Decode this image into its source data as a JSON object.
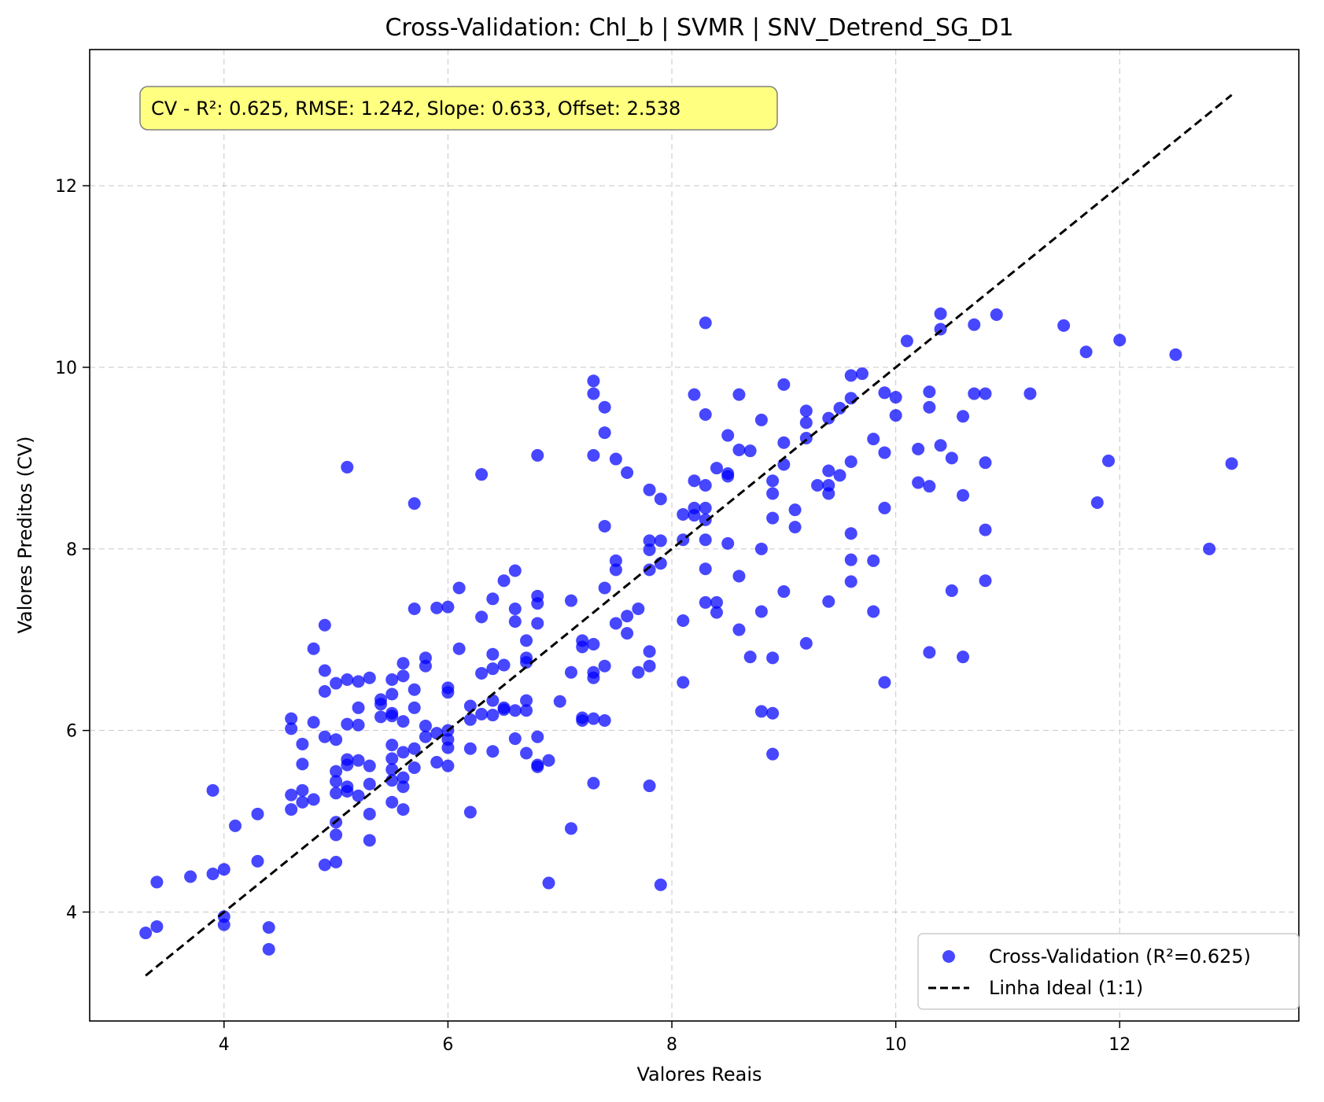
{
  "colors": {
    "points": "#0000ff",
    "ideal_line": "#000000",
    "stats_box_fill": "#ffff80",
    "stats_box_edge": "#808080"
  },
  "chart_data": {
    "type": "scatter",
    "title": "Cross-Validation: Chl_b | SVMR | SNV_Detrend_SG_D1",
    "xlabel": "Valores Reais",
    "ylabel": "Valores Preditos (CV)",
    "xlim": [
      2.8,
      13.6
    ],
    "ylim": [
      2.8,
      13.5
    ],
    "xticks": [
      4,
      6,
      8,
      10,
      12
    ],
    "yticks": [
      4,
      6,
      8,
      10,
      12
    ],
    "grid": true,
    "legend_position": "lower-right",
    "stats_text": "CV - R²: 0.625, RMSE: 1.242, Slope: 0.633, Offset: 2.538",
    "series": [
      {
        "name": "Cross-Validation (R²=0.625)",
        "kind": "scatter",
        "points": [
          [
            3.3,
            3.77
          ],
          [
            3.4,
            3.84
          ],
          [
            3.4,
            4.33
          ],
          [
            3.7,
            4.39
          ],
          [
            3.9,
            4.42
          ],
          [
            3.9,
            5.34
          ],
          [
            4.0,
            3.95
          ],
          [
            4.0,
            3.86
          ],
          [
            4.0,
            4.47
          ],
          [
            4.1,
            4.95
          ],
          [
            4.3,
            4.56
          ],
          [
            4.3,
            5.08
          ],
          [
            4.4,
            3.83
          ],
          [
            4.4,
            3.59
          ],
          [
            4.6,
            5.13
          ],
          [
            4.6,
            5.29
          ],
          [
            4.6,
            6.02
          ],
          [
            4.6,
            6.13
          ],
          [
            4.7,
            5.21
          ],
          [
            4.7,
            5.34
          ],
          [
            4.7,
            5.63
          ],
          [
            4.7,
            5.85
          ],
          [
            4.8,
            5.24
          ],
          [
            4.8,
            6.09
          ],
          [
            4.8,
            6.9
          ],
          [
            4.9,
            4.52
          ],
          [
            4.9,
            5.93
          ],
          [
            4.9,
            6.43
          ],
          [
            4.9,
            6.66
          ],
          [
            4.9,
            7.16
          ],
          [
            5.0,
            4.55
          ],
          [
            5.0,
            4.85
          ],
          [
            5.0,
            4.99
          ],
          [
            5.0,
            5.31
          ],
          [
            5.0,
            5.44
          ],
          [
            5.0,
            5.55
          ],
          [
            5.0,
            5.9
          ],
          [
            5.0,
            6.52
          ],
          [
            5.1,
            5.33
          ],
          [
            5.1,
            5.38
          ],
          [
            5.1,
            5.62
          ],
          [
            5.1,
            5.68
          ],
          [
            5.1,
            6.07
          ],
          [
            5.1,
            6.56
          ],
          [
            5.1,
            8.9
          ],
          [
            5.2,
            5.28
          ],
          [
            5.2,
            5.67
          ],
          [
            5.2,
            6.06
          ],
          [
            5.2,
            6.25
          ],
          [
            5.2,
            6.54
          ],
          [
            5.3,
            4.79
          ],
          [
            5.3,
            5.08
          ],
          [
            5.3,
            5.41
          ],
          [
            5.3,
            5.61
          ],
          [
            5.3,
            6.58
          ],
          [
            5.4,
            6.15
          ],
          [
            5.4,
            6.29
          ],
          [
            5.4,
            6.34
          ],
          [
            5.5,
            5.21
          ],
          [
            5.5,
            5.45
          ],
          [
            5.5,
            5.57
          ],
          [
            5.5,
            5.69
          ],
          [
            5.5,
            5.84
          ],
          [
            5.5,
            6.16
          ],
          [
            5.5,
            6.19
          ],
          [
            5.5,
            6.4
          ],
          [
            5.5,
            6.56
          ],
          [
            5.6,
            5.13
          ],
          [
            5.6,
            5.38
          ],
          [
            5.6,
            5.48
          ],
          [
            5.6,
            5.76
          ],
          [
            5.6,
            6.1
          ],
          [
            5.6,
            6.6
          ],
          [
            5.6,
            6.74
          ],
          [
            5.7,
            5.59
          ],
          [
            5.7,
            5.8
          ],
          [
            5.7,
            6.25
          ],
          [
            5.7,
            6.45
          ],
          [
            5.7,
            7.34
          ],
          [
            5.7,
            8.5
          ],
          [
            5.8,
            5.93
          ],
          [
            5.8,
            6.05
          ],
          [
            5.8,
            6.71
          ],
          [
            5.8,
            6.8
          ],
          [
            5.9,
            5.65
          ],
          [
            5.9,
            5.97
          ],
          [
            5.9,
            7.35
          ],
          [
            6.0,
            5.61
          ],
          [
            6.0,
            5.81
          ],
          [
            6.0,
            5.9
          ],
          [
            6.0,
            6.0
          ],
          [
            6.0,
            6.42
          ],
          [
            6.0,
            6.47
          ],
          [
            6.0,
            7.36
          ],
          [
            6.1,
            6.9
          ],
          [
            6.1,
            7.57
          ],
          [
            6.2,
            5.1
          ],
          [
            6.2,
            5.8
          ],
          [
            6.2,
            6.12
          ],
          [
            6.2,
            6.27
          ],
          [
            6.3,
            6.18
          ],
          [
            6.3,
            6.63
          ],
          [
            6.3,
            7.25
          ],
          [
            6.3,
            8.82
          ],
          [
            6.4,
            5.77
          ],
          [
            6.4,
            6.17
          ],
          [
            6.4,
            6.33
          ],
          [
            6.4,
            6.68
          ],
          [
            6.4,
            6.84
          ],
          [
            6.4,
            7.45
          ],
          [
            6.5,
            6.23
          ],
          [
            6.5,
            6.25
          ],
          [
            6.5,
            6.72
          ],
          [
            6.5,
            7.65
          ],
          [
            6.6,
            5.91
          ],
          [
            6.6,
            6.22
          ],
          [
            6.6,
            7.2
          ],
          [
            6.6,
            7.34
          ],
          [
            6.6,
            7.76
          ],
          [
            6.7,
            5.75
          ],
          [
            6.7,
            6.22
          ],
          [
            6.7,
            6.33
          ],
          [
            6.7,
            6.75
          ],
          [
            6.7,
            6.8
          ],
          [
            6.7,
            6.99
          ],
          [
            6.8,
            5.6
          ],
          [
            6.8,
            5.62
          ],
          [
            6.8,
            5.93
          ],
          [
            6.8,
            7.18
          ],
          [
            6.8,
            7.4
          ],
          [
            6.8,
            7.48
          ],
          [
            6.8,
            9.03
          ],
          [
            6.9,
            4.32
          ],
          [
            6.9,
            5.67
          ],
          [
            7.0,
            6.32
          ],
          [
            7.1,
            4.92
          ],
          [
            7.1,
            6.64
          ],
          [
            7.1,
            7.43
          ],
          [
            7.2,
            6.11
          ],
          [
            7.2,
            6.14
          ],
          [
            7.2,
            6.92
          ],
          [
            7.2,
            6.99
          ],
          [
            7.3,
            5.42
          ],
          [
            7.3,
            6.13
          ],
          [
            7.3,
            6.58
          ],
          [
            7.3,
            6.64
          ],
          [
            7.3,
            6.95
          ],
          [
            7.3,
            9.03
          ],
          [
            7.3,
            9.71
          ],
          [
            7.3,
            9.85
          ],
          [
            7.4,
            6.11
          ],
          [
            7.4,
            6.71
          ],
          [
            7.4,
            7.57
          ],
          [
            7.4,
            8.25
          ],
          [
            7.4,
            9.28
          ],
          [
            7.4,
            9.56
          ],
          [
            7.5,
            7.18
          ],
          [
            7.5,
            7.77
          ],
          [
            7.5,
            7.87
          ],
          [
            7.5,
            8.99
          ],
          [
            7.6,
            7.07
          ],
          [
            7.6,
            7.26
          ],
          [
            7.6,
            8.84
          ],
          [
            7.7,
            6.64
          ],
          [
            7.7,
            7.34
          ],
          [
            7.8,
            5.39
          ],
          [
            7.8,
            6.71
          ],
          [
            7.8,
            6.87
          ],
          [
            7.8,
            7.77
          ],
          [
            7.8,
            7.99
          ],
          [
            7.8,
            8.09
          ],
          [
            7.8,
            8.65
          ],
          [
            7.9,
            4.3
          ],
          [
            7.9,
            7.84
          ],
          [
            7.9,
            8.09
          ],
          [
            7.9,
            8.55
          ],
          [
            8.1,
            6.53
          ],
          [
            8.1,
            7.21
          ],
          [
            8.1,
            8.1
          ],
          [
            8.1,
            8.38
          ],
          [
            8.2,
            8.37
          ],
          [
            8.2,
            8.45
          ],
          [
            8.2,
            8.75
          ],
          [
            8.2,
            9.7
          ],
          [
            8.3,
            7.41
          ],
          [
            8.3,
            7.78
          ],
          [
            8.3,
            8.1
          ],
          [
            8.3,
            8.32
          ],
          [
            8.3,
            8.45
          ],
          [
            8.3,
            8.7
          ],
          [
            8.3,
            9.48
          ],
          [
            8.3,
            10.49
          ],
          [
            8.4,
            7.3
          ],
          [
            8.4,
            7.41
          ],
          [
            8.4,
            8.89
          ],
          [
            8.5,
            8.06
          ],
          [
            8.5,
            8.8
          ],
          [
            8.5,
            8.83
          ],
          [
            8.5,
            9.25
          ],
          [
            8.6,
            7.11
          ],
          [
            8.6,
            7.7
          ],
          [
            8.6,
            9.09
          ],
          [
            8.6,
            9.7
          ],
          [
            8.7,
            6.81
          ],
          [
            8.7,
            9.08
          ],
          [
            8.8,
            6.21
          ],
          [
            8.8,
            7.31
          ],
          [
            8.8,
            8.0
          ],
          [
            8.8,
            9.42
          ],
          [
            8.9,
            5.74
          ],
          [
            8.9,
            6.19
          ],
          [
            8.9,
            6.8
          ],
          [
            8.9,
            8.34
          ],
          [
            8.9,
            8.61
          ],
          [
            8.9,
            8.75
          ],
          [
            9.0,
            7.53
          ],
          [
            9.0,
            8.93
          ],
          [
            9.0,
            9.17
          ],
          [
            9.0,
            9.81
          ],
          [
            9.1,
            8.24
          ],
          [
            9.1,
            8.43
          ],
          [
            9.2,
            6.96
          ],
          [
            9.2,
            9.22
          ],
          [
            9.2,
            9.39
          ],
          [
            9.2,
            9.52
          ],
          [
            9.3,
            8.7
          ],
          [
            9.4,
            7.42
          ],
          [
            9.4,
            8.61
          ],
          [
            9.4,
            8.7
          ],
          [
            9.4,
            8.86
          ],
          [
            9.4,
            9.44
          ],
          [
            9.5,
            8.81
          ],
          [
            9.5,
            9.55
          ],
          [
            9.6,
            7.64
          ],
          [
            9.6,
            7.88
          ],
          [
            9.6,
            8.17
          ],
          [
            9.6,
            8.96
          ],
          [
            9.6,
            9.66
          ],
          [
            9.6,
            9.91
          ],
          [
            9.7,
            9.93
          ],
          [
            9.8,
            7.31
          ],
          [
            9.8,
            7.87
          ],
          [
            9.8,
            9.21
          ],
          [
            9.9,
            6.53
          ],
          [
            9.9,
            8.45
          ],
          [
            9.9,
            9.06
          ],
          [
            9.9,
            9.72
          ],
          [
            10.0,
            9.47
          ],
          [
            10.0,
            9.67
          ],
          [
            10.1,
            10.29
          ],
          [
            10.2,
            8.73
          ],
          [
            10.2,
            9.1
          ],
          [
            10.3,
            6.86
          ],
          [
            10.3,
            8.69
          ],
          [
            10.3,
            9.56
          ],
          [
            10.3,
            9.73
          ],
          [
            10.4,
            9.14
          ],
          [
            10.4,
            10.42
          ],
          [
            10.4,
            10.59
          ],
          [
            10.5,
            7.54
          ],
          [
            10.5,
            9.0
          ],
          [
            10.6,
            6.81
          ],
          [
            10.6,
            8.59
          ],
          [
            10.6,
            9.46
          ],
          [
            10.7,
            9.71
          ],
          [
            10.7,
            10.47
          ],
          [
            10.8,
            7.65
          ],
          [
            10.8,
            8.21
          ],
          [
            10.8,
            8.95
          ],
          [
            10.8,
            9.71
          ],
          [
            10.9,
            10.58
          ],
          [
            11.2,
            9.71
          ],
          [
            11.5,
            10.46
          ],
          [
            11.7,
            10.17
          ],
          [
            11.8,
            8.51
          ],
          [
            11.9,
            8.97
          ],
          [
            12.0,
            10.3
          ],
          [
            12.5,
            10.14
          ],
          [
            12.8,
            8.0
          ],
          [
            13.0,
            8.94
          ]
        ]
      },
      {
        "name": "Linha Ideal (1:1)",
        "kind": "line",
        "x": [
          3.3,
          13.0
        ],
        "y": [
          3.3,
          13.0
        ]
      }
    ]
  }
}
